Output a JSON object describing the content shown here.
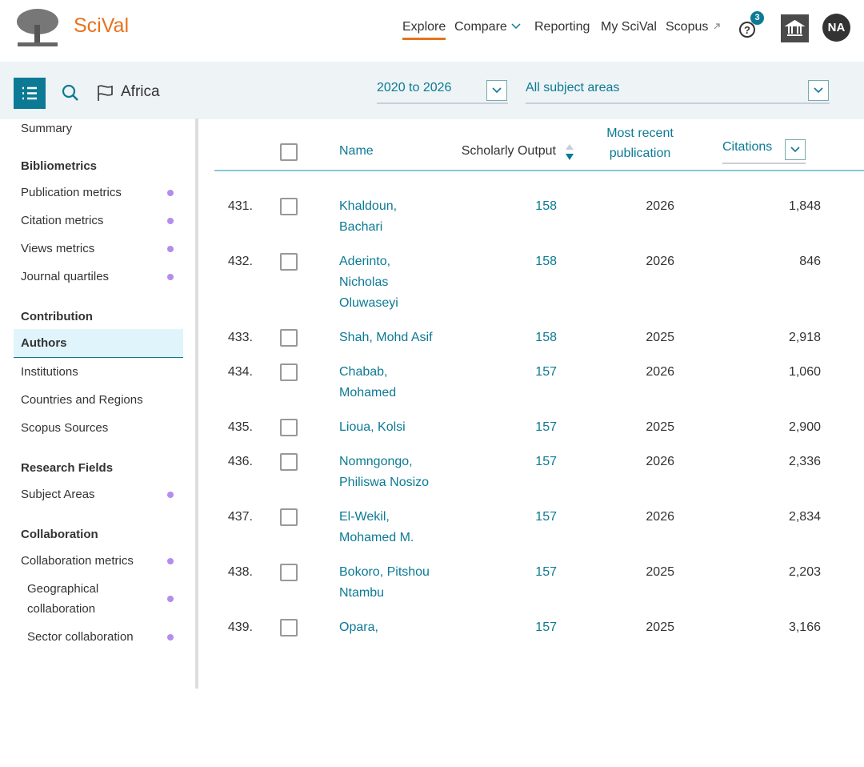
{
  "header": {
    "brand": "SciVal",
    "nav": [
      "Explore",
      "Compare",
      "Reporting",
      "My SciVal",
      "Scopus"
    ],
    "active_nav": 0,
    "help_badge": "3",
    "avatar": "NA"
  },
  "toolbar": {
    "entity": "Africa",
    "year_range": "2020 to 2026",
    "subject": "All subject areas"
  },
  "sidebar": {
    "summary": "Summary",
    "sections": [
      {
        "heading": "Bibliometrics",
        "items": [
          {
            "label": "Publication metrics",
            "dot": true
          },
          {
            "label": "Citation metrics",
            "dot": true
          },
          {
            "label": "Views metrics",
            "dot": true
          },
          {
            "label": "Journal quartiles",
            "dot": true
          }
        ]
      },
      {
        "heading": "Contribution",
        "items": [
          {
            "label": "Authors",
            "active": true
          },
          {
            "label": "Institutions"
          },
          {
            "label": "Countries and Regions"
          },
          {
            "label": "Scopus Sources"
          }
        ]
      },
      {
        "heading": "Research Fields",
        "items": [
          {
            "label": "Subject Areas",
            "dot": true
          }
        ]
      },
      {
        "heading": "Collaboration",
        "items": [
          {
            "label": "Collaboration metrics",
            "dot": true
          },
          {
            "label": "Geographical collaboration",
            "dot": true,
            "indent": true
          },
          {
            "label": "Sector collaboration",
            "dot": true,
            "indent": true
          }
        ]
      }
    ]
  },
  "table": {
    "columns": {
      "name": "Name",
      "output": "Scholarly Output",
      "recent": "Most recent publication",
      "citations": "Citations"
    },
    "rows": [
      {
        "rank": "431.",
        "name": [
          "Khaldoun,",
          "Bachari"
        ],
        "output": "158",
        "year": "2026",
        "citations": "1,848"
      },
      {
        "rank": "432.",
        "name": [
          "Aderinto,",
          "Nicholas",
          "Oluwaseyi"
        ],
        "output": "158",
        "year": "2026",
        "citations": "846"
      },
      {
        "rank": "433.",
        "name": [
          "Shah, Mohd Asif"
        ],
        "output": "158",
        "year": "2025",
        "citations": "2,918"
      },
      {
        "rank": "434.",
        "name": [
          "Chabab,",
          "Mohamed"
        ],
        "output": "157",
        "year": "2026",
        "citations": "1,060"
      },
      {
        "rank": "435.",
        "name": [
          "Lioua, Kolsi"
        ],
        "output": "157",
        "year": "2025",
        "citations": "2,900"
      },
      {
        "rank": "436.",
        "name": [
          "Nomngongo,",
          "Philiswa Nosizo"
        ],
        "output": "157",
        "year": "2026",
        "citations": "2,336"
      },
      {
        "rank": "437.",
        "name": [
          "El-Wekil,",
          "Mohamed M."
        ],
        "output": "157",
        "year": "2026",
        "citations": "2,834"
      },
      {
        "rank": "438.",
        "name": [
          "Bokoro, Pitshou",
          "Ntambu"
        ],
        "output": "157",
        "year": "2025",
        "citations": "2,203"
      },
      {
        "rank": "439.",
        "name": [
          "Opara,"
        ],
        "output": "157",
        "year": "2025",
        "citations": "3,166"
      }
    ]
  }
}
